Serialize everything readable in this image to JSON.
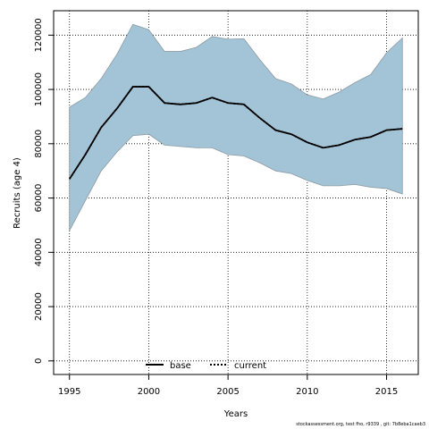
{
  "chart_data": {
    "type": "area",
    "xlabel": "Years",
    "ylabel": "Recruits (age 4)",
    "xlim": [
      1994,
      2017
    ],
    "ylim": [
      -5000,
      129000
    ],
    "x_ticks": [
      1995,
      2000,
      2005,
      2010,
      2015
    ],
    "y_ticks": [
      0,
      20000,
      40000,
      60000,
      80000,
      100000,
      120000
    ],
    "grid": true,
    "legend_position": "bottom-center",
    "x": [
      1995,
      1996,
      1997,
      1998,
      1999,
      2000,
      2001,
      2002,
      2003,
      2004,
      2005,
      2006,
      2007,
      2008,
      2009,
      2010,
      2011,
      2012,
      2013,
      2014,
      2015,
      2016
    ],
    "band": {
      "fill_color": "#a3c4d6",
      "upper": [
        93500,
        97000,
        104000,
        113000,
        124000,
        122000,
        114000,
        114000,
        115500,
        119500,
        118500,
        118700,
        111000,
        104000,
        102000,
        98000,
        96500,
        99000,
        102500,
        105500,
        113500,
        119000
      ],
      "lower": [
        48000,
        59000,
        70000,
        77000,
        83000,
        83500,
        79500,
        79000,
        78500,
        78500,
        76000,
        75500,
        73000,
        70000,
        69000,
        66500,
        64500,
        64500,
        65000,
        64000,
        63500,
        61500
      ]
    },
    "series": [
      {
        "name": "base",
        "style": "solid",
        "color": "#000000",
        "values": [
          67000,
          76000,
          86000,
          93000,
          101000,
          101000,
          95000,
          94500,
          95000,
          97000,
          95000,
          94500,
          89500,
          85000,
          83500,
          80500,
          78500,
          79500,
          81500,
          82500,
          85000,
          85500
        ]
      },
      {
        "name": "current",
        "style": "dotted",
        "color": "#000000",
        "values": [
          67000,
          76000,
          86000,
          93000,
          101000,
          101000,
          95000,
          94500,
          95000,
          97000,
          95000,
          94500,
          89500,
          85000,
          83500,
          80500,
          78500,
          79500,
          81500,
          82500,
          85000,
          85500
        ]
      }
    ]
  },
  "footer": {
    "text": "stockassessment.org, test  fho, r9339 , git: 7b8eba1caeb3"
  }
}
